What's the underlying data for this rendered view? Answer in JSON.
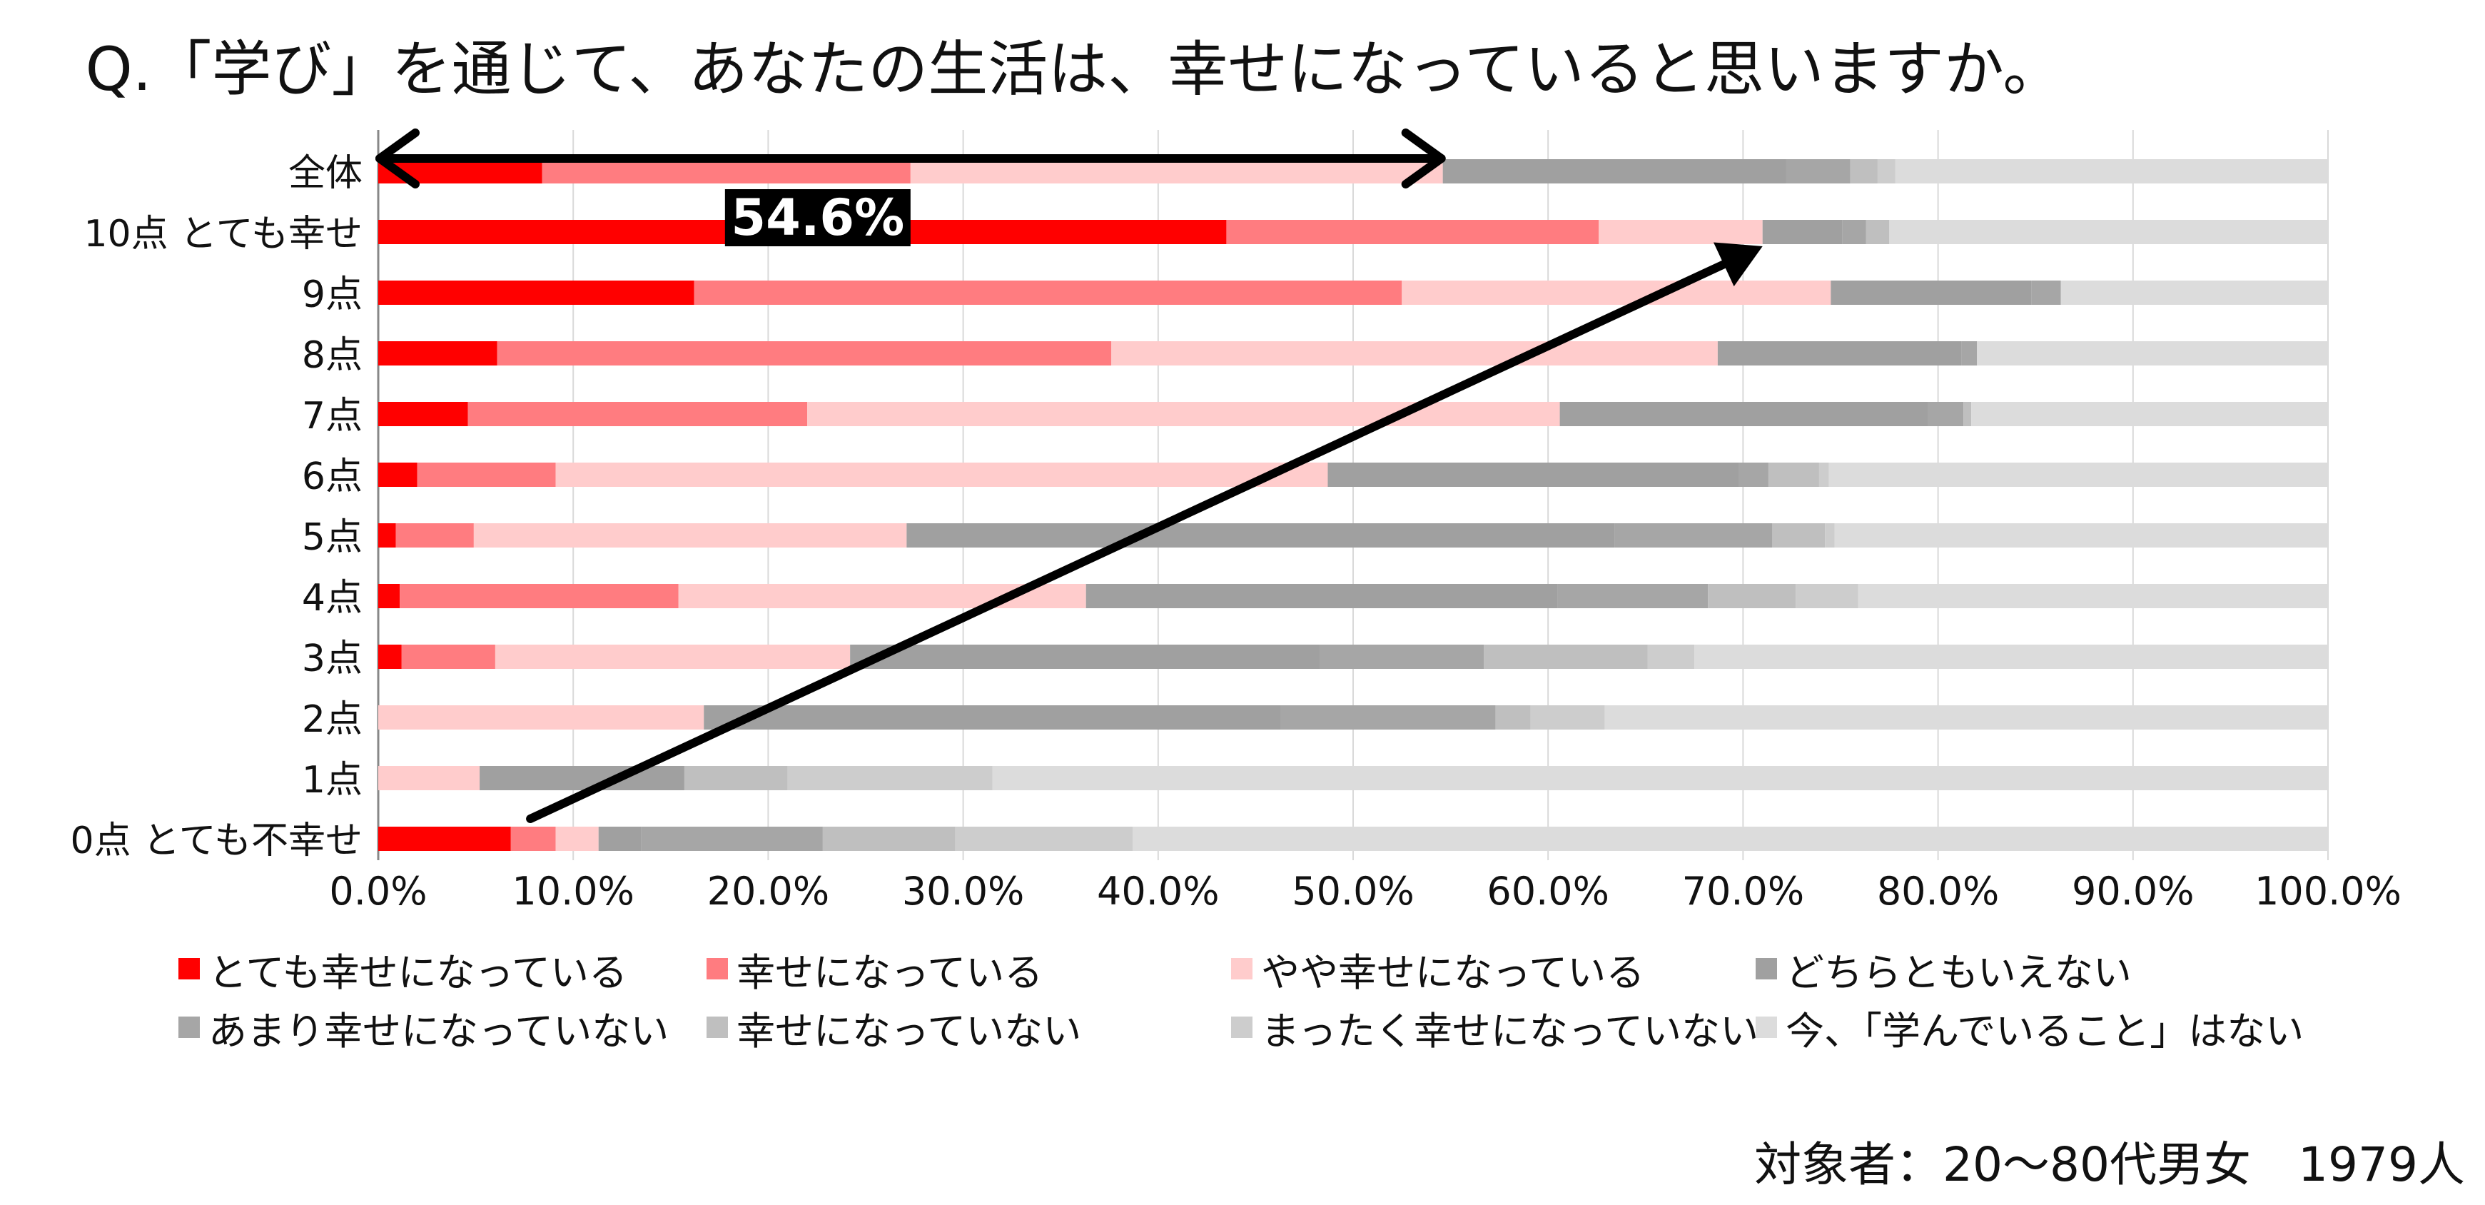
{
  "chart_data": {
    "type": "bar",
    "orientation": "horizontal",
    "stacked": "percent",
    "title": "Q.「学び」を通じて、あなたの生活は、幸せになっていると思いますか。",
    "categories": [
      "全体",
      "10点 とても幸せ",
      "9点",
      "8点",
      "7点",
      "6点",
      "5点",
      "4点",
      "3点",
      "2点",
      "1点",
      "0点 とても不幸せ"
    ],
    "xlim": [
      0,
      100
    ],
    "x_ticks": [
      "0.0%",
      "10.0%",
      "20.0%",
      "30.0%",
      "40.0%",
      "50.0%",
      "60.0%",
      "70.0%",
      "80.0%",
      "90.0%",
      "100.0%"
    ],
    "grid": true,
    "legend_position": "bottom",
    "series": [
      {
        "name": "とても幸せになっている",
        "color": "#ff0000",
        "values": [
          8.4,
          43.5,
          16.2,
          6.1,
          4.6,
          2.0,
          0.9,
          1.1,
          1.2,
          0,
          0,
          6.8
        ]
      },
      {
        "name": "幸せになっている",
        "color": "#ff7c80",
        "values": [
          18.9,
          19.1,
          36.3,
          31.5,
          17.4,
          7.1,
          4.0,
          14.3,
          4.8,
          0,
          0,
          2.3
        ]
      },
      {
        "name": "やや幸せになっている",
        "color": "#ffcccc",
        "values": [
          27.3,
          8.4,
          22.0,
          31.1,
          38.6,
          39.6,
          22.2,
          20.9,
          18.2,
          16.7,
          5.2,
          2.2
        ]
      },
      {
        "name": "どちらともいえない",
        "color": "#a0a0a0",
        "values": [
          17.6,
          4.1,
          10.3,
          12.5,
          18.9,
          21.1,
          36.3,
          24.2,
          24.1,
          29.6,
          10.5,
          2.2
        ]
      },
      {
        "name": "あまり幸せになっていない",
        "color": "#a6a6a6",
        "values": [
          3.3,
          1.2,
          1.5,
          0.8,
          1.8,
          1.5,
          8.1,
          7.7,
          8.4,
          11.0,
          0,
          9.3
        ]
      },
      {
        "name": "幸せになっていない",
        "color": "#bfbfbf",
        "values": [
          1.4,
          1.2,
          0,
          0,
          0.4,
          2.6,
          2.7,
          4.5,
          8.4,
          1.8,
          5.3,
          6.8
        ]
      },
      {
        "name": "まったく幸せになっていない",
        "color": "#cdcdcd",
        "values": [
          0.9,
          0,
          0,
          0,
          0,
          0.5,
          0.5,
          3.2,
          2.4,
          3.8,
          10.5,
          9.1
        ]
      },
      {
        "name": "今、「学んでいること」はない",
        "color": "#dcdcdc",
        "values": [
          22.2,
          22.5,
          13.7,
          18.0,
          18.3,
          25.6,
          25.3,
          24.1,
          32.5,
          37.1,
          68.5,
          61.3
        ]
      }
    ],
    "annotations": [
      {
        "text": "54.6%",
        "row": "全体",
        "from": 0,
        "to": 54.6,
        "kind": "double-arrow"
      },
      {
        "text": "",
        "from_row": "0点 とても不幸せ",
        "from_x": 7.8,
        "to_row": "10点 とても幸せ",
        "to_x": 71.0,
        "kind": "trend-arrow"
      }
    ]
  },
  "footer": {
    "respondents": "対象者：20～80代男女　1979人"
  }
}
